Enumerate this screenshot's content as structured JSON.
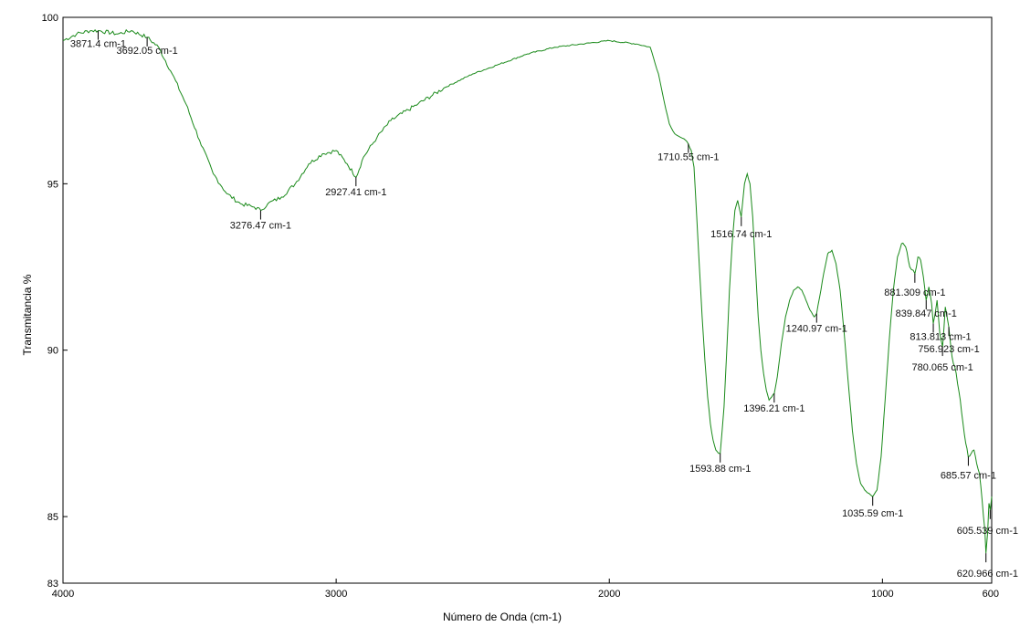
{
  "chart_data": {
    "type": "line",
    "title": "",
    "xlabel": "Número de Onda (cm-1)",
    "ylabel": "Transmitancia %",
    "xlim": [
      4000,
      600
    ],
    "ylim": [
      83,
      100
    ],
    "x_reversed": true,
    "grid": false,
    "legend": "none",
    "line_color": "#1a8a1a",
    "x_ticks": [
      {
        "value": 4000,
        "label": "4000"
      },
      {
        "value": 3000,
        "label": "3000"
      },
      {
        "value": 2000,
        "label": "2000"
      },
      {
        "value": 1000,
        "label": "1000"
      },
      {
        "value": 600,
        "label": "600"
      }
    ],
    "y_ticks": [
      {
        "value": 100,
        "label": "100"
      },
      {
        "value": 95,
        "label": "95"
      },
      {
        "value": 90,
        "label": "90"
      },
      {
        "value": 85,
        "label": "85"
      },
      {
        "value": 83,
        "label": "83"
      }
    ],
    "series": [
      {
        "x": [
          4000,
          3950,
          3900,
          3871,
          3800,
          3750,
          3692,
          3650,
          3600,
          3550,
          3500,
          3450,
          3400,
          3350,
          3300,
          3276,
          3250,
          3200,
          3150,
          3100,
          3050,
          3000,
          2960,
          2927,
          2900,
          2850,
          2800,
          2700,
          2600,
          2500,
          2400,
          2300,
          2200,
          2100,
          2000,
          1900,
          1850,
          1820,
          1800,
          1780,
          1760,
          1740,
          1720,
          1711,
          1700,
          1690,
          1680,
          1670,
          1660,
          1650,
          1640,
          1630,
          1620,
          1610,
          1600,
          1594,
          1580,
          1570,
          1560,
          1550,
          1540,
          1530,
          1517,
          1505,
          1495,
          1485,
          1475,
          1465,
          1455,
          1445,
          1435,
          1425,
          1415,
          1405,
          1396,
          1385,
          1370,
          1355,
          1340,
          1325,
          1310,
          1295,
          1280,
          1265,
          1250,
          1241,
          1230,
          1215,
          1200,
          1185,
          1170,
          1155,
          1140,
          1125,
          1110,
          1095,
          1080,
          1065,
          1050,
          1036,
          1020,
          1005,
          990,
          975,
          960,
          945,
          930,
          915,
          900,
          881,
          870,
          860,
          850,
          840,
          830,
          820,
          814,
          800,
          790,
          780,
          770,
          757,
          745,
          735,
          725,
          715,
          705,
          695,
          686,
          675,
          665,
          655,
          645,
          635,
          625,
          621,
          615,
          610,
          605,
          600
        ],
        "y": [
          99.3,
          99.5,
          99.6,
          99.6,
          99.5,
          99.6,
          99.4,
          99.1,
          98.3,
          97.4,
          96.3,
          95.3,
          94.7,
          94.4,
          94.3,
          94.2,
          94.4,
          94.6,
          95.0,
          95.6,
          95.9,
          96.0,
          95.6,
          95.2,
          95.8,
          96.4,
          96.9,
          97.4,
          97.9,
          98.3,
          98.6,
          98.9,
          99.1,
          99.2,
          99.3,
          99.2,
          99.1,
          98.3,
          97.5,
          96.8,
          96.5,
          96.4,
          96.3,
          96.2,
          96.0,
          95.5,
          94.0,
          92.5,
          91.0,
          89.7,
          88.6,
          87.8,
          87.3,
          87.0,
          86.9,
          86.9,
          88.3,
          90.0,
          91.8,
          93.2,
          94.2,
          94.5,
          94.0,
          95.0,
          95.3,
          95.0,
          94.0,
          92.5,
          91.0,
          90.0,
          89.3,
          88.8,
          88.5,
          88.6,
          88.7,
          89.2,
          90.2,
          91.0,
          91.5,
          91.8,
          91.9,
          91.8,
          91.5,
          91.2,
          91.0,
          91.1,
          91.6,
          92.3,
          92.9,
          93.0,
          92.6,
          91.8,
          90.5,
          89.0,
          87.6,
          86.6,
          86.0,
          85.8,
          85.7,
          85.6,
          85.8,
          86.8,
          88.5,
          90.3,
          91.8,
          92.8,
          93.2,
          93.1,
          92.5,
          92.3,
          92.8,
          92.7,
          92.2,
          91.5,
          91.9,
          91.4,
          90.8,
          91.5,
          90.5,
          90.1,
          91.3,
          90.7,
          89.8,
          89.5,
          89.0,
          88.5,
          87.8,
          87.2,
          86.8,
          86.9,
          87.0,
          86.6,
          86.3,
          85.5,
          84.6,
          83.9,
          84.5,
          85.4,
          85.2,
          85.6
        ]
      }
    ],
    "peak_annotations": [
      {
        "x": 3871.4,
        "y": 99.6,
        "label": "3871.4 cm-1"
      },
      {
        "x": 3692.05,
        "y": 99.4,
        "label": "3692.05 cm-1"
      },
      {
        "x": 3276.47,
        "y": 94.2,
        "label": "3276.47 cm-1"
      },
      {
        "x": 2927.41,
        "y": 95.2,
        "label": "2927.41 cm-1"
      },
      {
        "x": 1710.55,
        "y": 96.2,
        "label": "1710.55 cm-1"
      },
      {
        "x": 1593.88,
        "y": 86.9,
        "label": "1593.88 cm-1"
      },
      {
        "x": 1516.74,
        "y": 94.0,
        "label": "1516.74 cm-1"
      },
      {
        "x": 1396.21,
        "y": 88.7,
        "label": "1396.21 cm-1"
      },
      {
        "x": 1240.97,
        "y": 91.1,
        "label": "1240.97 cm-1"
      },
      {
        "x": 1035.59,
        "y": 85.6,
        "label": "1035.59 cm-1"
      },
      {
        "x": 881.309,
        "y": 92.3,
        "label": "881.309 cm-1"
      },
      {
        "x": 839.847,
        "y": 91.5,
        "label": "839.847 cm-1"
      },
      {
        "x": 813.813,
        "y": 90.8,
        "label": "813.813 cm-1"
      },
      {
        "x": 780.065,
        "y": 90.1,
        "label": "780.065 cm-1"
      },
      {
        "x": 756.923,
        "y": 90.7,
        "label": "756.923 cm-1"
      },
      {
        "x": 685.57,
        "y": 86.8,
        "label": "685.57 cm-1"
      },
      {
        "x": 620.966,
        "y": 83.9,
        "label": "620.966 cm-1"
      },
      {
        "x": 605.539,
        "y": 85.2,
        "label": "605.539 cm-1"
      }
    ]
  }
}
